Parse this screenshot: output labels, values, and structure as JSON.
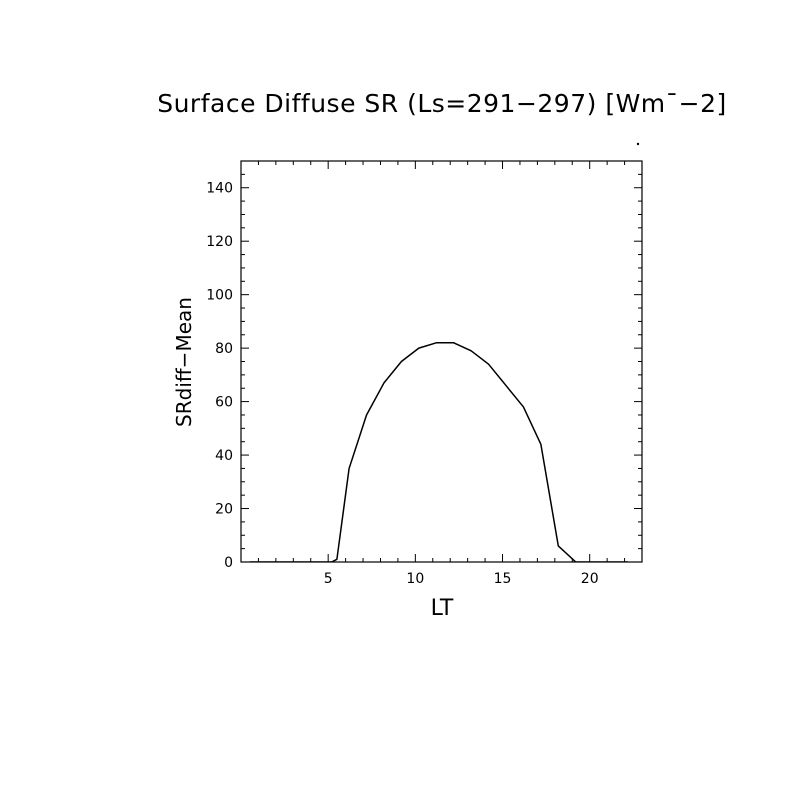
{
  "chart_data": {
    "type": "line",
    "title": "Surface Diffuse SR (Ls=291−297) [Wm¯−2]",
    "xlabel": "LT",
    "ylabel": "SRdiff−Mean",
    "xlim": [
      0,
      23
    ],
    "ylim": [
      0,
      150
    ],
    "xticks": [
      5,
      10,
      15,
      20
    ],
    "yticks": [
      0,
      20,
      40,
      60,
      80,
      100,
      120,
      140
    ],
    "grid": false,
    "series": [
      {
        "x": [
          0.5,
          1.5,
          2.5,
          3.5,
          4.5,
          5.2,
          5.5,
          6.2,
          7.2,
          8.2,
          9.2,
          10.2,
          11.2,
          12.2,
          13.2,
          14.2,
          15.2,
          16.2,
          17.2,
          18.2,
          19.2,
          20.2,
          21.2,
          22.2
        ],
        "values": [
          0,
          0,
          0,
          0,
          0,
          0,
          1,
          35,
          55,
          67,
          75,
          80,
          82,
          82,
          79,
          74,
          66,
          58,
          44,
          6,
          0,
          0,
          0,
          0
        ],
        "color": "#000000"
      }
    ]
  }
}
